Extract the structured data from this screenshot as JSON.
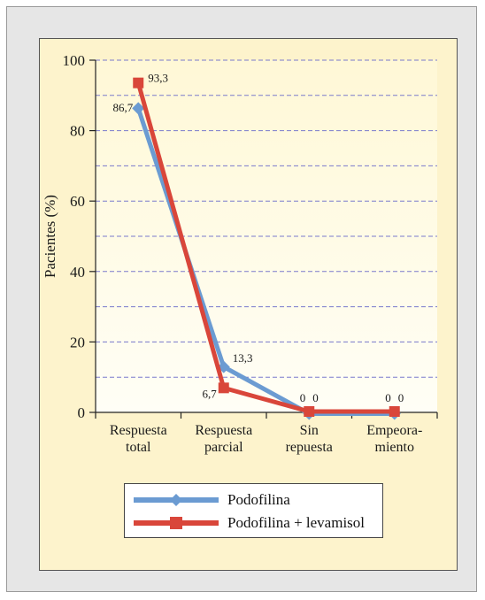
{
  "chart_data": {
    "type": "line",
    "ylabel": "Pacientes (%)",
    "ylim": [
      0,
      100
    ],
    "yticks": [
      0,
      20,
      40,
      60,
      80,
      100
    ],
    "categories": [
      [
        "Respuesta",
        "total"
      ],
      [
        "Respuesta",
        "parcial"
      ],
      [
        "Sin",
        "repuesta"
      ],
      [
        "Empeora-",
        "miento"
      ]
    ],
    "series": [
      {
        "name": "Podofilina",
        "values": [
          86.7,
          13.3,
          0,
          0
        ],
        "labels": [
          "86,7",
          "13,3",
          "0",
          "0"
        ],
        "color": "#6b9bd2",
        "marker": "diamond"
      },
      {
        "name": "Podofilina + levamisol",
        "values": [
          93.3,
          6.7,
          0,
          0
        ],
        "labels": [
          "93,3",
          "6,7",
          "0",
          "0"
        ],
        "color": "#d9463a",
        "marker": "square"
      }
    ],
    "grid": "dashed horizontal",
    "legend_position": "bottom"
  },
  "colors": {
    "plot_background": "#fffbe2",
    "grid": "#7a7acc"
  }
}
